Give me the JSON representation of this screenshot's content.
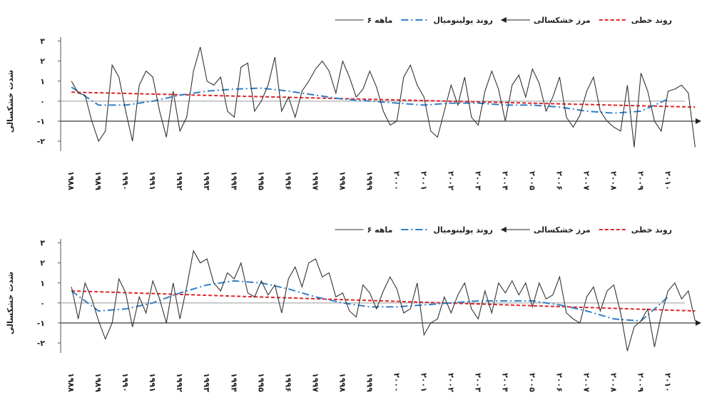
{
  "chart_data": [
    {
      "type": "line",
      "ylabel": "شدت خشکسالی",
      "xlim": [
        1987.6,
        2011.2
      ],
      "ylim": [
        -2.5,
        3.2
      ],
      "yticks": [
        {
          "value": 3,
          "label": "۳"
        },
        {
          "value": 2,
          "label": "۲"
        },
        {
          "value": 1,
          "label": "۱"
        },
        {
          "value": 0,
          "label": "۰"
        },
        {
          "value": -1,
          "label": "-۱"
        },
        {
          "value": -2,
          "label": "-۲"
        }
      ],
      "xticks": [
        {
          "value": 1988,
          "label": "۱۹۸۸"
        },
        {
          "value": 1989,
          "label": "۱۹۸۹"
        },
        {
          "value": 1990,
          "label": "۱۹۹۰"
        },
        {
          "value": 1991,
          "label": "۱۹۹۱"
        },
        {
          "value": 1992,
          "label": "۱۹۹۲"
        },
        {
          "value": 1993,
          "label": "۱۹۹۳"
        },
        {
          "value": 1994,
          "label": "۱۹۹۴"
        },
        {
          "value": 1995,
          "label": "۱۹۹۵"
        },
        {
          "value": 1996,
          "label": "۱۹۹۶"
        },
        {
          "value": 1997,
          "label": "۱۹۹۷"
        },
        {
          "value": 1998,
          "label": "۱۹۹۸"
        },
        {
          "value": 1999,
          "label": "۱۹۹۹"
        },
        {
          "value": 2000,
          "label": "۲۰۰۰"
        },
        {
          "value": 2001,
          "label": "۲۰۰۱"
        },
        {
          "value": 2002,
          "label": "۲۰۰۲"
        },
        {
          "value": 2003,
          "label": "۲۰۰۳"
        },
        {
          "value": 2004,
          "label": "۲۰۰۴"
        },
        {
          "value": 2005,
          "label": "۲۰۰۵"
        },
        {
          "value": 2006,
          "label": "۲۰۰۶"
        },
        {
          "value": 2007,
          "label": "۲۰۰۷"
        },
        {
          "value": 2008,
          "label": "۲۰۰۸"
        },
        {
          "value": 2009,
          "label": "۲۰۰۹"
        },
        {
          "value": 2010,
          "label": "۲۰۱۰"
        }
      ],
      "series": [
        {
          "name": "روند خطی",
          "color": "#e0262b",
          "style": "dash",
          "x": [
            1988,
            2011
          ],
          "values": [
            0.45,
            -0.3
          ]
        },
        {
          "name": "مرز خشکسالی",
          "color": "#222222",
          "style": "arrow",
          "x": [
            1987.6,
            2011.2
          ],
          "values": [
            -1,
            -1
          ]
        },
        {
          "name": "روند پولینومیال",
          "color": "#2f7fc8",
          "style": "dashdot",
          "x": [
            1988,
            1989,
            1990,
            1991,
            1992,
            1993,
            1994,
            1995,
            1996,
            1997,
            1998,
            1999,
            2000,
            2001,
            2002,
            2003,
            2004,
            2005,
            2006,
            2007,
            2008,
            2009,
            2010
          ],
          "values": [
            0.7,
            -0.2,
            -0.2,
            0.0,
            0.3,
            0.5,
            0.6,
            0.65,
            0.5,
            0.3,
            0.1,
            0.0,
            -0.1,
            -0.2,
            -0.1,
            -0.1,
            -0.2,
            -0.2,
            -0.3,
            -0.5,
            -0.6,
            -0.5,
            0.1
          ]
        },
        {
          "name": "۶ ماهه",
          "color": "#333333",
          "style": "solid",
          "x": [
            1988,
            1988.25,
            1988.5,
            1988.75,
            1989,
            1989.25,
            1989.5,
            1989.75,
            1990,
            1990.25,
            1990.5,
            1990.75,
            1991,
            1991.25,
            1991.5,
            1991.75,
            1992,
            1992.25,
            1992.5,
            1992.75,
            1993,
            1993.25,
            1993.5,
            1993.75,
            1994,
            1994.25,
            1994.5,
            1994.75,
            1995,
            1995.25,
            1995.5,
            1995.75,
            1996,
            1996.25,
            1996.5,
            1996.75,
            1997,
            1997.25,
            1997.5,
            1997.75,
            1998,
            1998.25,
            1998.5,
            1998.75,
            1999,
            1999.25,
            1999.5,
            1999.75,
            2000,
            2000.25,
            2000.5,
            2000.75,
            2001,
            2001.25,
            2001.5,
            2001.75,
            2002,
            2002.25,
            2002.5,
            2002.75,
            2003,
            2003.25,
            2003.5,
            2003.75,
            2004,
            2004.25,
            2004.5,
            2004.75,
            2005,
            2005.25,
            2005.5,
            2005.75,
            2006,
            2006.25,
            2006.5,
            2006.75,
            2007,
            2007.25,
            2007.5,
            2007.75,
            2008,
            2008.25,
            2008.5,
            2008.75,
            2009,
            2009.25,
            2009.5,
            2009.75,
            2010,
            2010.25,
            2010.5,
            2010.75,
            2011
          ],
          "values": [
            1.0,
            0.4,
            0.3,
            -1.0,
            -2.0,
            -1.5,
            1.8,
            1.2,
            -0.5,
            -2.0,
            0.8,
            1.5,
            1.2,
            -0.5,
            -1.8,
            0.5,
            -1.5,
            -0.8,
            1.5,
            2.7,
            1.0,
            0.8,
            1.2,
            -0.5,
            -0.8,
            1.7,
            1.9,
            -0.5,
            0.0,
            0.8,
            2.2,
            -0.5,
            0.2,
            -0.8,
            0.5,
            1.0,
            1.6,
            2.0,
            1.5,
            0.4,
            2.0,
            1.2,
            0.2,
            0.6,
            1.5,
            0.7,
            -0.5,
            -1.2,
            -1.0,
            1.2,
            1.8,
            0.8,
            0.2,
            -1.5,
            -1.8,
            -0.5,
            0.8,
            -0.2,
            1.2,
            -0.8,
            -1.2,
            0.5,
            1.5,
            0.6,
            -1.0,
            0.8,
            1.3,
            0.2,
            1.6,
            0.9,
            -0.5,
            0.2,
            1.2,
            -0.8,
            -1.3,
            -0.7,
            0.5,
            1.2,
            -0.5,
            -1.0,
            -1.3,
            -1.5,
            0.8,
            -2.3,
            1.4,
            0.5,
            -1.0,
            -1.5,
            0.5,
            0.6,
            0.8,
            0.4,
            -2.3
          ]
        }
      ]
    },
    {
      "type": "line",
      "ylabel": "شدت خشکسالی",
      "xlim": [
        1987.6,
        2011.2
      ],
      "ylim": [
        -2.5,
        3.2
      ],
      "yticks": [
        {
          "value": 3,
          "label": "۳"
        },
        {
          "value": 2,
          "label": "۲"
        },
        {
          "value": 1,
          "label": "۱"
        },
        {
          "value": 0,
          "label": "۰"
        },
        {
          "value": -1,
          "label": "-۱"
        },
        {
          "value": -2,
          "label": "-۲"
        }
      ],
      "xticks": [
        {
          "value": 1988,
          "label": "۱۹۸۸"
        },
        {
          "value": 1989,
          "label": "۱۹۸۹"
        },
        {
          "value": 1990,
          "label": "۱۹۹۰"
        },
        {
          "value": 1991,
          "label": "۱۹۹۱"
        },
        {
          "value": 1992,
          "label": "۱۹۹۲"
        },
        {
          "value": 1993,
          "label": "۱۹۹۳"
        },
        {
          "value": 1994,
          "label": "۱۹۹۴"
        },
        {
          "value": 1995,
          "label": "۱۹۹۵"
        },
        {
          "value": 1996,
          "label": "۱۹۹۶"
        },
        {
          "value": 1997,
          "label": "۱۹۹۷"
        },
        {
          "value": 1998,
          "label": "۱۹۹۸"
        },
        {
          "value": 1999,
          "label": "۱۹۹۹"
        },
        {
          "value": 2000,
          "label": "۲۰۰۰"
        },
        {
          "value": 2001,
          "label": "۲۰۰۱"
        },
        {
          "value": 2002,
          "label": "۲۰۰۲"
        },
        {
          "value": 2003,
          "label": "۲۰۰۳"
        },
        {
          "value": 2004,
          "label": "۲۰۰۴"
        },
        {
          "value": 2005,
          "label": "۲۰۰۵"
        },
        {
          "value": 2006,
          "label": "۲۰۰۶"
        },
        {
          "value": 2007,
          "label": "۲۰۰۷"
        },
        {
          "value": 2008,
          "label": "۲۰۰۸"
        },
        {
          "value": 2009,
          "label": "۲۰۰۹"
        },
        {
          "value": 2010,
          "label": "۲۰۱۰"
        }
      ],
      "series": [
        {
          "name": "روند خطی",
          "color": "#e0262b",
          "style": "dash",
          "x": [
            1988,
            2011
          ],
          "values": [
            0.6,
            -0.4
          ]
        },
        {
          "name": "مرز خشکسالی",
          "color": "#222222",
          "style": "arrow",
          "x": [
            1987.6,
            2011.2
          ],
          "values": [
            -1,
            -1
          ]
        },
        {
          "name": "روند پولینومیال",
          "color": "#2f7fc8",
          "style": "dashdot",
          "x": [
            1988,
            1989,
            1990,
            1991,
            1992,
            1993,
            1994,
            1995,
            1996,
            1997,
            1998,
            1999,
            2000,
            2001,
            2002,
            2003,
            2004,
            2005,
            2006,
            2007,
            2008,
            2009,
            2010
          ],
          "values": [
            0.6,
            -0.4,
            -0.3,
            0.0,
            0.5,
            0.9,
            1.1,
            1.0,
            0.7,
            0.3,
            0.0,
            -0.2,
            -0.2,
            -0.1,
            0.0,
            0.1,
            0.1,
            0.1,
            -0.1,
            -0.4,
            -0.8,
            -0.9,
            0.3
          ]
        },
        {
          "name": "۶ ماهه",
          "color": "#333333",
          "style": "solid",
          "x": [
            1988,
            1988.25,
            1988.5,
            1988.75,
            1989,
            1989.25,
            1989.5,
            1989.75,
            1990,
            1990.25,
            1990.5,
            1990.75,
            1991,
            1991.25,
            1991.5,
            1991.75,
            1992,
            1992.25,
            1992.5,
            1992.75,
            1993,
            1993.25,
            1993.5,
            1993.75,
            1994,
            1994.25,
            1994.5,
            1994.75,
            1995,
            1995.25,
            1995.5,
            1995.75,
            1996,
            1996.25,
            1996.5,
            1996.75,
            1997,
            1997.25,
            1997.5,
            1997.75,
            1998,
            1998.25,
            1998.5,
            1998.75,
            1999,
            1999.25,
            1999.5,
            1999.75,
            2000,
            2000.25,
            2000.5,
            2000.75,
            2001,
            2001.25,
            2001.5,
            2001.75,
            2002,
            2002.25,
            2002.5,
            2002.75,
            2003,
            2003.25,
            2003.5,
            2003.75,
            2004,
            2004.25,
            2004.5,
            2004.75,
            2005,
            2005.25,
            2005.5,
            2005.75,
            2006,
            2006.25,
            2006.5,
            2006.75,
            2007,
            2007.25,
            2007.5,
            2007.75,
            2008,
            2008.25,
            2008.5,
            2008.75,
            2009,
            2009.25,
            2009.5,
            2009.75,
            2010,
            2010.25,
            2010.5,
            2010.75,
            2011
          ],
          "values": [
            0.8,
            -0.8,
            1.0,
            0.2,
            -0.9,
            -1.8,
            -1.0,
            1.2,
            0.5,
            -1.2,
            0.3,
            -0.5,
            1.1,
            0.2,
            -1.0,
            1.0,
            -0.8,
            0.8,
            2.6,
            2.0,
            2.2,
            1.0,
            0.6,
            1.5,
            1.2,
            2.0,
            0.5,
            0.3,
            1.1,
            0.4,
            0.9,
            -0.5,
            1.2,
            1.8,
            0.8,
            2.0,
            2.2,
            1.3,
            1.5,
            0.3,
            0.5,
            -0.4,
            -0.7,
            0.9,
            0.5,
            -0.3,
            0.6,
            1.3,
            0.7,
            -0.5,
            -0.3,
            1.0,
            -1.6,
            -1.0,
            -0.8,
            0.3,
            -0.5,
            0.4,
            1.0,
            -0.3,
            -0.8,
            0.6,
            -0.5,
            1.0,
            0.5,
            1.1,
            0.4,
            1.0,
            -0.2,
            1.0,
            0.2,
            0.4,
            1.3,
            -0.5,
            -0.8,
            -1.0,
            0.3,
            0.8,
            -0.4,
            0.6,
            0.9,
            -0.5,
            -2.4,
            -1.2,
            -0.9,
            -0.3,
            -2.2,
            -0.6,
            0.6,
            1.0,
            0.2,
            0.6,
            -0.9
          ]
        }
      ]
    }
  ]
}
